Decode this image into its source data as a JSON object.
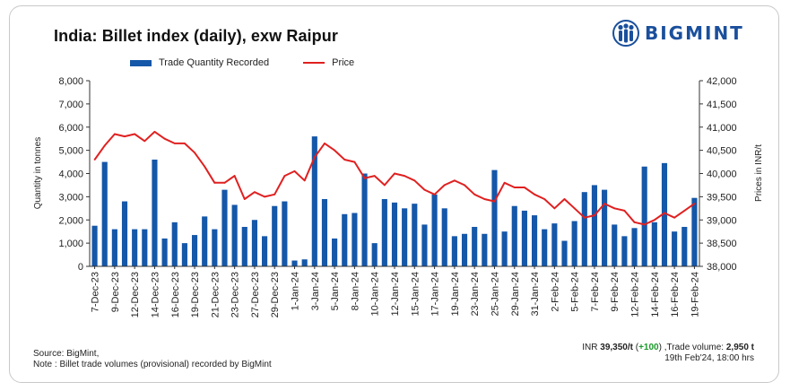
{
  "title": "India: Billet index (daily), exw Raipur",
  "brand": {
    "name": "BIGMINT",
    "color": "#1a4f9c"
  },
  "colors": {
    "bar": "#1557a8",
    "line": "#e02020",
    "change": "#1a9a2a"
  },
  "legend": {
    "bar_label": "Trade Quantity Recorded",
    "line_label": "Price"
  },
  "footer": {
    "source": "Source: BigMint,",
    "note": "Note : Billet trade volumes (provisional) recorded by BigMint",
    "price_prefix": "INR ",
    "price": "39,350/t",
    "change_open": " (",
    "change": "+100",
    "change_close": ")",
    "volume_prefix": " ,Trade volume: ",
    "volume": "2,950 t",
    "timestamp": "19th Feb'24, 18:00 hrs"
  },
  "chart_data": {
    "type": "bar+line",
    "title": "India: Billet index (daily), exw Raipur",
    "ylabel_left": "Quantity in tonnes",
    "ylabel_right": "Prices in INR/t",
    "ylim_left": [
      0,
      8000
    ],
    "ylim_right": [
      38000,
      42000
    ],
    "yticks_left": [
      "0",
      "1,000",
      "2,000",
      "3,000",
      "4,000",
      "5,000",
      "6,000",
      "7,000",
      "8,000"
    ],
    "yticks_right": [
      "38,000",
      "38,500",
      "39,000",
      "39,500",
      "40,000",
      "40,500",
      "41,000",
      "41,500",
      "42,000"
    ],
    "xtick_labels": [
      "7-Dec-23",
      "9-Dec-23",
      "12-Dec-23",
      "14-Dec-23",
      "16-Dec-23",
      "19-Dec-23",
      "21-Dec-23",
      "23-Dec-23",
      "27-Dec-23",
      "29-Dec-23",
      "1-Jan-24",
      "3-Jan-24",
      "5-Jan-24",
      "8-Jan-24",
      "10-Jan-24",
      "12-Jan-24",
      "15-Jan-24",
      "17-Jan-24",
      "19-Jan-24",
      "23-Jan-24",
      "25-Jan-24",
      "29-Jan-24",
      "31-Jan-24",
      "2-Feb-24",
      "5-Feb-24",
      "7-Feb-24",
      "9-Feb-24",
      "12-Feb-24",
      "14-Feb-24",
      "16-Feb-24",
      "19-Feb-24"
    ],
    "series": [
      {
        "name": "Trade Quantity Recorded",
        "type": "bar",
        "axis": "left",
        "values": [
          1750,
          4500,
          1600,
          2800,
          1600,
          1600,
          4600,
          1200,
          1900,
          1000,
          1350,
          2150,
          1600,
          3300,
          2650,
          1700,
          2000,
          1300,
          2600,
          2800,
          250,
          300,
          5600,
          2900,
          1200,
          2250,
          2300,
          4000,
          1000,
          2900,
          2750,
          2500,
          2700,
          1800,
          3100,
          2500,
          1300,
          1400,
          1700,
          1400,
          4150,
          1500,
          2600,
          2400,
          2200,
          1600,
          1850,
          1100,
          1950,
          3200,
          3500,
          3300,
          1800,
          1300,
          1650,
          4300,
          1900,
          4450,
          1500,
          1700,
          2950
        ]
      },
      {
        "name": "Price",
        "type": "line",
        "axis": "right",
        "values": [
          40300,
          40600,
          40850,
          40800,
          40850,
          40700,
          40900,
          40750,
          40650,
          40650,
          40450,
          40150,
          39800,
          39800,
          39950,
          39450,
          39600,
          39500,
          39550,
          39950,
          40050,
          39850,
          40350,
          40650,
          40500,
          40300,
          40250,
          39900,
          39950,
          39750,
          40000,
          39950,
          39850,
          39650,
          39550,
          39750,
          39850,
          39750,
          39550,
          39450,
          39400,
          39800,
          39700,
          39700,
          39550,
          39450,
          39250,
          39450,
          39250,
          39050,
          39100,
          39350,
          39250,
          39200,
          38950,
          38900,
          39000,
          39150,
          39050,
          39200,
          39350
        ]
      }
    ]
  }
}
